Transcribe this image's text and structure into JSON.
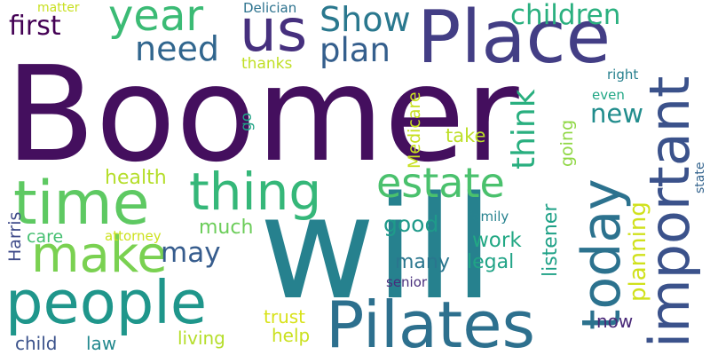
{
  "word_cloud": {
    "words": [
      {
        "text": "Boomer",
        "color": "#440f5e",
        "orientation": "horizontal"
      },
      {
        "text": "will",
        "color": "#26818e",
        "orientation": "horizontal"
      },
      {
        "text": "Place",
        "color": "#433e85",
        "orientation": "horizontal"
      },
      {
        "text": "Pilates",
        "color": "#2d708e",
        "orientation": "horizontal"
      },
      {
        "text": "people",
        "color": "#1f968b",
        "orientation": "horizontal"
      },
      {
        "text": "important",
        "color": "#3b528b",
        "orientation": "vertical"
      },
      {
        "text": "today",
        "color": "#2c728e",
        "orientation": "vertical"
      },
      {
        "text": "time",
        "color": "#5ec962",
        "orientation": "horizontal"
      },
      {
        "text": "us",
        "color": "#46307e",
        "orientation": "horizontal"
      },
      {
        "text": "make",
        "color": "#7ad151",
        "orientation": "horizontal"
      },
      {
        "text": "thing",
        "color": "#35b779",
        "orientation": "horizontal"
      },
      {
        "text": "year",
        "color": "#3bbb75",
        "orientation": "horizontal"
      },
      {
        "text": "estate",
        "color": "#4ac16d",
        "orientation": "horizontal"
      },
      {
        "text": "Show",
        "color": "#2a788e",
        "orientation": "horizontal"
      },
      {
        "text": "planning",
        "color": "#d0e11c",
        "orientation": "vertical"
      },
      {
        "text": "plan",
        "color": "#355f8d",
        "orientation": "horizontal"
      },
      {
        "text": "children",
        "color": "#2ab07f",
        "orientation": "horizontal"
      },
      {
        "text": "need",
        "color": "#31668e",
        "orientation": "horizontal"
      },
      {
        "text": "think",
        "color": "#29af7f",
        "orientation": "vertical"
      },
      {
        "text": "first",
        "color": "#440154",
        "orientation": "horizontal"
      },
      {
        "text": "new",
        "color": "#228d8d",
        "orientation": "horizontal"
      },
      {
        "text": "may",
        "color": "#365c8d",
        "orientation": "horizontal"
      },
      {
        "text": "health",
        "color": "#b5de2b",
        "orientation": "horizontal"
      },
      {
        "text": "good",
        "color": "#1f9a8a",
        "orientation": "horizontal"
      },
      {
        "text": "work",
        "color": "#22a884",
        "orientation": "horizontal"
      },
      {
        "text": "much",
        "color": "#6ccd5a",
        "orientation": "horizontal"
      },
      {
        "text": "many",
        "color": "#2a768e",
        "orientation": "horizontal"
      },
      {
        "text": "legal",
        "color": "#20a386",
        "orientation": "horizontal"
      },
      {
        "text": "listener",
        "color": "#1fa187",
        "orientation": "vertical"
      },
      {
        "text": "take",
        "color": "#bddf26",
        "orientation": "horizontal"
      },
      {
        "text": "going",
        "color": "#8fd744",
        "orientation": "vertical"
      },
      {
        "text": "Medicare",
        "color": "#c8e020",
        "orientation": "vertical"
      },
      {
        "text": "Harris",
        "color": "#3e4a89",
        "orientation": "vertical"
      },
      {
        "text": "care",
        "color": "#44bf70",
        "orientation": "horizontal"
      },
      {
        "text": "trust",
        "color": "#d8e219",
        "orientation": "horizontal"
      },
      {
        "text": "living",
        "color": "#b5de2b",
        "orientation": "horizontal"
      },
      {
        "text": "help",
        "color": "#cae11f",
        "orientation": "horizontal"
      },
      {
        "text": "law",
        "color": "#23898e",
        "orientation": "horizontal"
      },
      {
        "text": "child",
        "color": "#3b528b",
        "orientation": "horizontal"
      },
      {
        "text": "now",
        "color": "#482878",
        "orientation": "horizontal"
      },
      {
        "text": "thanks",
        "color": "#c0df25",
        "orientation": "horizontal"
      },
      {
        "text": "go",
        "color": "#20a386",
        "orientation": "vertical"
      },
      {
        "text": "Delician",
        "color": "#2c728e",
        "orientation": "horizontal"
      },
      {
        "text": "matter",
        "color": "#c8e020",
        "orientation": "horizontal"
      },
      {
        "text": "family",
        "color": "#26828e",
        "orientation": "horizontal"
      },
      {
        "text": "attorney",
        "color": "#cde11d",
        "orientation": "horizontal"
      },
      {
        "text": "senior",
        "color": "#472d7b",
        "orientation": "horizontal"
      },
      {
        "text": "right",
        "color": "#27808e",
        "orientation": "horizontal"
      },
      {
        "text": "even",
        "color": "#22a785",
        "orientation": "horizontal"
      },
      {
        "text": "state",
        "color": "#33638d",
        "orientation": "vertical"
      }
    ]
  }
}
